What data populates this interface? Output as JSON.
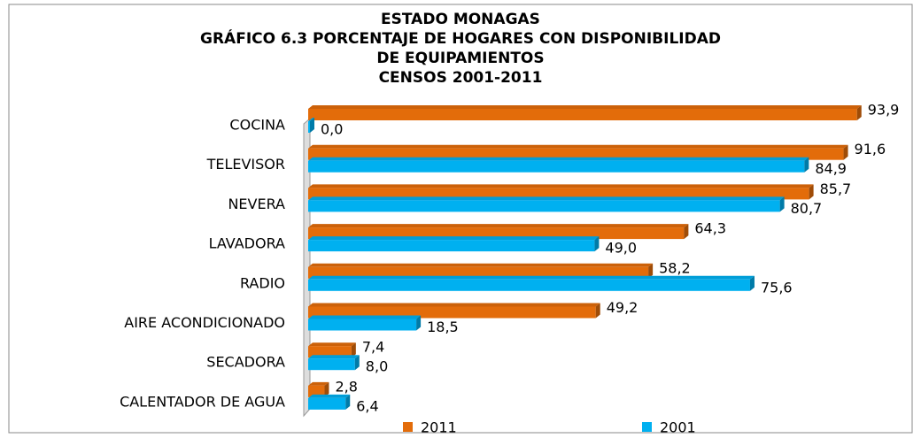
{
  "chart_data": {
    "type": "bar",
    "orientation": "horizontal",
    "title": [
      "ESTADO MONAGAS",
      "GRÁFICO 6.3 PORCENTAJE DE HOGARES CON DISPONIBILIDAD",
      "DE EQUIPAMIENTOS",
      "CENSOS 2001-2011"
    ],
    "categories": [
      "COCINA",
      "TELEVISOR",
      "NEVERA",
      "LAVADORA",
      "RADIO",
      "AIRE ACONDICIONADO",
      "SECADORA",
      "CALENTADOR DE AGUA"
    ],
    "series": [
      {
        "name": "2011",
        "color": "#e36c0a",
        "values": [
          93.9,
          91.6,
          85.7,
          64.3,
          58.2,
          49.2,
          7.4,
          2.8
        ],
        "value_labels": [
          "93,9",
          "91,6",
          "85,7",
          "64,3",
          "58,2",
          "49,2",
          "7,4",
          "2,8"
        ]
      },
      {
        "name": "2001",
        "color": "#00b0f0",
        "values": [
          0.0,
          84.9,
          80.7,
          49.0,
          75.6,
          18.5,
          8.0,
          6.4
        ],
        "value_labels": [
          "0,0",
          "84,9",
          "80,7",
          "49,0",
          "75,6",
          "18,5",
          "8,0",
          "6,4"
        ]
      }
    ],
    "legend": "bottom"
  }
}
